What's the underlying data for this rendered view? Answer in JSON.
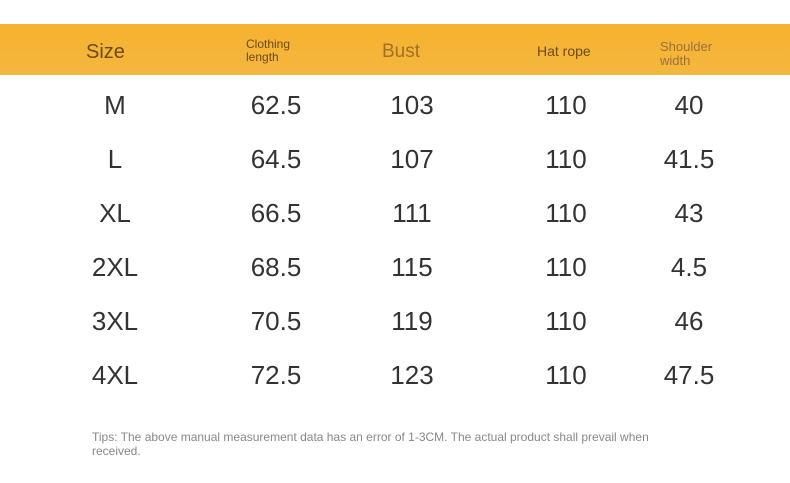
{
  "table": {
    "header": [
      "Size",
      "Clothing length",
      "Bust",
      "Hat rope",
      "Shoulder width"
    ],
    "rows": [
      [
        "M",
        "62.5",
        "103",
        "110",
        "40"
      ],
      [
        "L",
        "64.5",
        "107",
        "110",
        "41.5"
      ],
      [
        "XL",
        "66.5",
        "111",
        "110",
        "43"
      ],
      [
        "2XL",
        "68.5",
        "115",
        "110",
        "4.5"
      ],
      [
        "3XL",
        "70.5",
        "119",
        "110",
        "46"
      ],
      [
        "4XL",
        "72.5",
        "123",
        "110",
        "47.5"
      ]
    ]
  },
  "tips": "Tips: The above manual measurement data has an error of 1-3CM. The actual product shall prevail when received."
}
